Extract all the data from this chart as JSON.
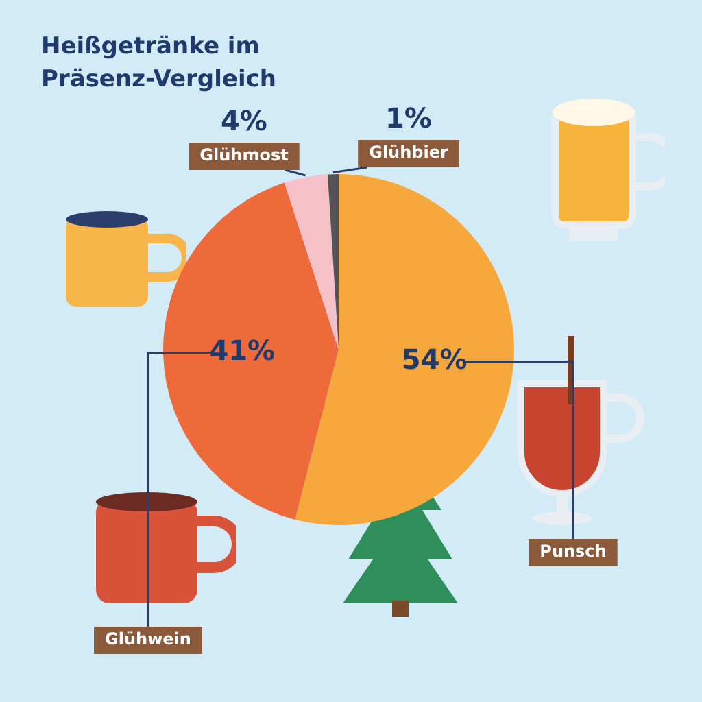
{
  "chart_data": {
    "type": "pie",
    "title": "Heißgetränke im Präsenz-Vergleich",
    "categories": [
      "Punsch",
      "Glühwein",
      "Glühmost",
      "Glühbier"
    ],
    "values": [
      54,
      41,
      4,
      1
    ],
    "colors": [
      "#f6a83c",
      "#ee6a3b",
      "#f6c1c9",
      "#555555"
    ],
    "value_labels": [
      "54%",
      "41%",
      "4%",
      "1%"
    ],
    "legend": false
  }
}
